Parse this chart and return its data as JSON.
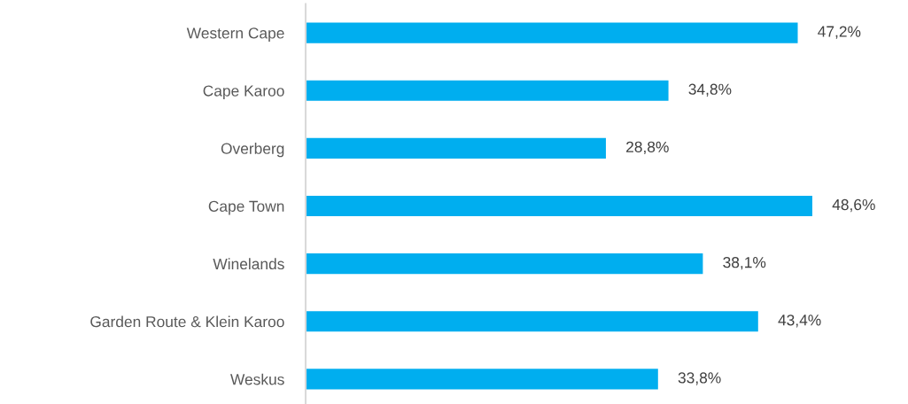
{
  "chart_data": {
    "type": "bar",
    "orientation": "horizontal",
    "categories": [
      "Western Cape",
      "Cape Karoo",
      "Overberg",
      "Cape Town",
      "Winelands",
      "Garden Route & Klein Karoo",
      "Weskus"
    ],
    "values": [
      47.2,
      34.8,
      28.8,
      48.6,
      38.1,
      43.4,
      33.8
    ],
    "value_labels": [
      "47,2%",
      "34,8%",
      "28,8%",
      "48,6%",
      "38,1%",
      "43,4%",
      "33,8%"
    ],
    "color": "#00aeef",
    "tick_labels": "y",
    "grid": false,
    "legend": false
  }
}
